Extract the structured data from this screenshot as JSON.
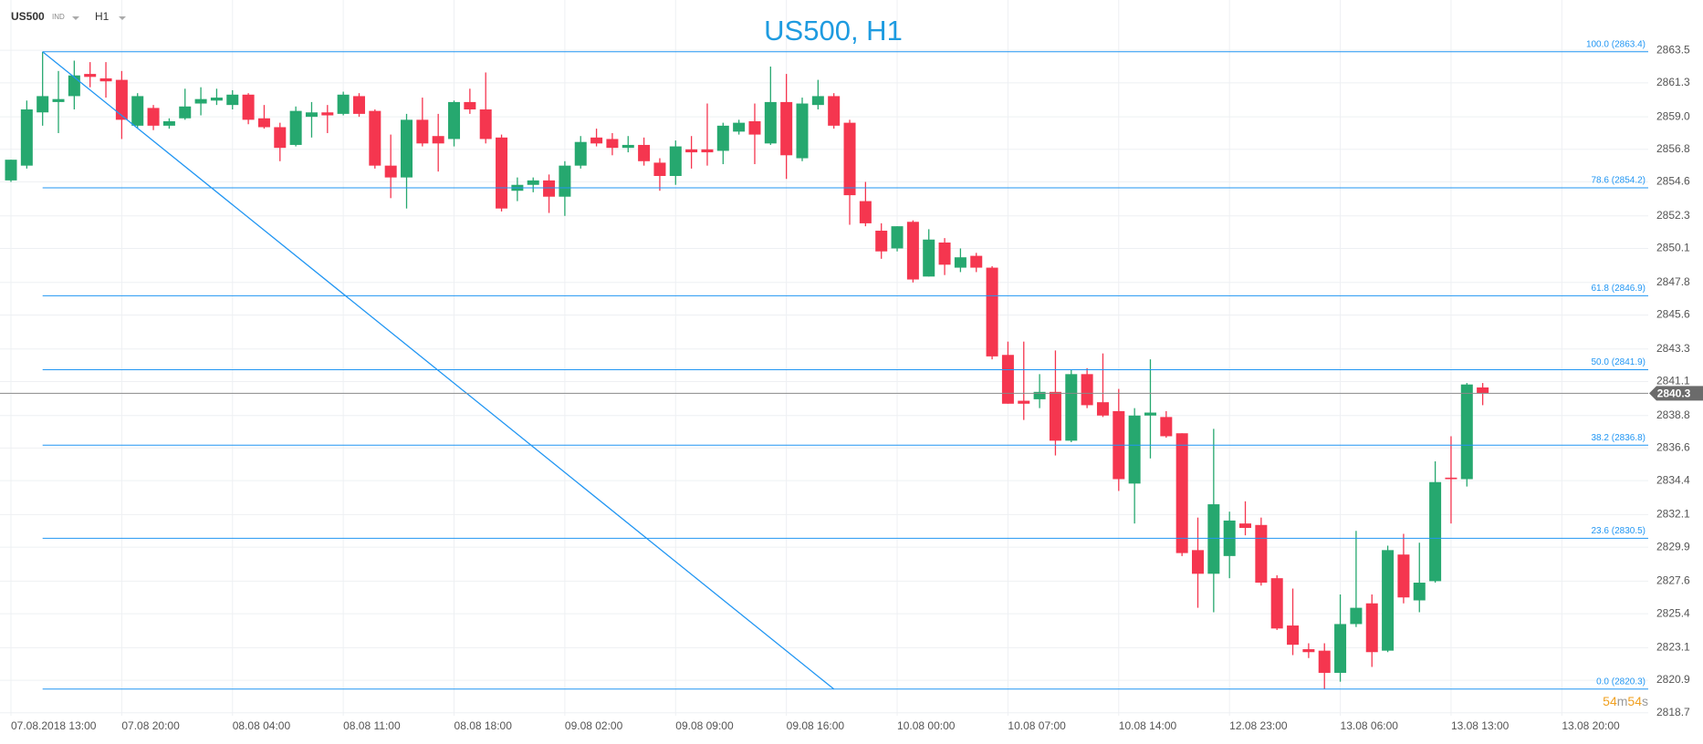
{
  "header": {
    "symbol": "US500",
    "market": "IND",
    "timeframe": "H1"
  },
  "chart_data": {
    "type": "candlestick",
    "title": "US500, H1",
    "categories": [
      "07.08.2018 13:00",
      null,
      null,
      null,
      null,
      null,
      null,
      "07.08 20:00",
      null,
      null,
      null,
      null,
      null,
      null,
      "08.08 04:00",
      null,
      null,
      null,
      null,
      null,
      null,
      "08.08 11:00",
      null,
      null,
      null,
      null,
      null,
      null,
      "08.08 18:00",
      null,
      null,
      null,
      null,
      null,
      null,
      "09.08 02:00",
      null,
      null,
      null,
      null,
      null,
      null,
      "09.08 09:00",
      null,
      null,
      null,
      null,
      null,
      null,
      "09.08 16:00",
      null,
      null,
      null,
      null,
      null,
      null,
      "10.08 00:00",
      null,
      null,
      null,
      null,
      null,
      null,
      "10.08 07:00",
      null,
      null,
      null,
      null,
      null,
      null,
      "10.08 14:00",
      null,
      null,
      null,
      null,
      null,
      null,
      "12.08 23:00",
      null,
      null,
      null,
      null,
      null,
      null,
      "13.08 06:00",
      null,
      null,
      null,
      null,
      null,
      null,
      "13.08 13:00",
      null,
      null,
      null,
      null,
      null,
      null,
      "13.08 20:00"
    ],
    "open": [
      2854.7,
      2855.7,
      2859.3,
      2860.0,
      2860.4,
      2861.9,
      2861.6,
      2861.5,
      2858.4,
      2859.6,
      2858.4,
      2858.9,
      2859.9,
      2860.1,
      2859.8,
      2860.5,
      2858.9,
      2858.3,
      2857.1,
      2859.0,
      2859.3,
      2859.2,
      2860.4,
      2859.4,
      2855.7,
      2854.9,
      2858.8,
      2857.7,
      2857.5,
      2860.0,
      2859.5,
      2857.6,
      2854.0,
      2854.4,
      2854.7,
      2853.6,
      2855.7,
      2857.6,
      2857.5,
      2856.9,
      2857.1,
      2855.9,
      2855.0,
      2856.8,
      2856.8,
      2856.7,
      2858.0,
      2858.7,
      2857.2,
      2860.0,
      2856.2,
      2859.8,
      2860.4,
      2858.6,
      2853.3,
      2851.3,
      2850.1,
      2851.9,
      2848.2,
      2850.5,
      2848.8,
      2849.6,
      2848.8,
      2842.9,
      2839.8,
      2839.9,
      2840.4,
      2837.1,
      2841.6,
      2839.7,
      2839.1,
      2834.2,
      2838.8,
      2838.7,
      2837.6,
      2829.7,
      2828.1,
      2829.3,
      2831.5,
      2831.4,
      2827.8,
      2824.6,
      2823.0,
      2822.9,
      2821.4,
      2824.7,
      2826.1,
      2822.9,
      2829.4,
      2826.3,
      2827.6,
      2834.6,
      2834.5,
      2840.7,
      null,
      null,
      null,
      null,
      null
    ],
    "high": [
      2856.1,
      2860.1,
      2863.4,
      2862.1,
      2862.8,
      2862.7,
      2862.7,
      2862.1,
      2860.6,
      2859.8,
      2858.9,
      2860.9,
      2861.0,
      2860.9,
      2860.8,
      2860.6,
      2859.8,
      2858.6,
      2859.7,
      2860.0,
      2859.8,
      2860.7,
      2860.6,
      2859.5,
      2857.8,
      2859.2,
      2860.3,
      2859.2,
      2860.1,
      2860.9,
      2862.0,
      2857.8,
      2854.9,
      2854.9,
      2855.1,
      2856.0,
      2857.7,
      2858.2,
      2857.9,
      2857.7,
      2857.6,
      2856.2,
      2857.4,
      2857.7,
      2859.9,
      2858.6,
      2858.8,
      2859.9,
      2862.4,
      2861.9,
      2860.3,
      2861.5,
      2860.6,
      2858.8,
      2854.6,
      2851.8,
      2851.6,
      2852.0,
      2851.4,
      2850.8,
      2850.1,
      2849.8,
      2848.9,
      2843.8,
      2843.8,
      2841.6,
      2843.2,
      2841.9,
      2842.0,
      2843.0,
      2840.6,
      2839.3,
      2842.6,
      2839.1,
      2837.6,
      2831.9,
      2837.9,
      2832.3,
      2833.0,
      2831.9,
      2828.0,
      2827.1,
      2823.4,
      2823.4,
      2826.7,
      2831.0,
      2826.7,
      2830.0,
      2830.8,
      2830.2,
      2835.7,
      2837.4,
      2841.0,
      2841.0,
      null,
      null,
      null,
      null,
      null
    ],
    "low": [
      2854.6,
      2855.5,
      2858.4,
      2857.9,
      2859.5,
      2861.0,
      2860.3,
      2857.5,
      2858.2,
      2858.1,
      2858.2,
      2858.8,
      2859.1,
      2859.8,
      2859.5,
      2858.5,
      2858.2,
      2856.0,
      2857.0,
      2857.6,
      2857.9,
      2859.1,
      2859.0,
      2855.5,
      2853.5,
      2852.8,
      2857.0,
      2855.3,
      2857.0,
      2859.2,
      2857.2,
      2852.6,
      2853.3,
      2853.9,
      2852.5,
      2852.3,
      2855.5,
      2857.0,
      2856.4,
      2856.6,
      2855.7,
      2854.0,
      2854.4,
      2855.5,
      2855.7,
      2855.8,
      2857.8,
      2855.8,
      2857.1,
      2854.8,
      2856.0,
      2859.5,
      2858.2,
      2851.7,
      2851.6,
      2849.4,
      2849.9,
      2847.8,
      2848.2,
      2848.3,
      2848.5,
      2848.5,
      2842.6,
      2839.6,
      2838.5,
      2839.3,
      2836.1,
      2837.0,
      2839.3,
      2838.7,
      2833.7,
      2831.5,
      2835.9,
      2837.3,
      2829.3,
      2825.8,
      2825.5,
      2827.8,
      2830.7,
      2827.3,
      2824.3,
      2822.6,
      2822.4,
      2820.3,
      2820.8,
      2824.5,
      2821.8,
      2822.8,
      2826.1,
      2825.5,
      2827.5,
      2831.5,
      2834.0,
      2839.5,
      null,
      null,
      null,
      null,
      null
    ],
    "close": [
      2856.1,
      2859.5,
      2860.4,
      2860.2,
      2861.8,
      2861.7,
      2861.4,
      2858.8,
      2860.4,
      2858.4,
      2858.7,
      2859.7,
      2860.2,
      2860.3,
      2860.5,
      2858.8,
      2858.3,
      2856.9,
      2859.4,
      2859.3,
      2859.1,
      2860.5,
      2859.2,
      2855.7,
      2854.9,
      2858.8,
      2857.2,
      2857.2,
      2860.0,
      2859.5,
      2857.5,
      2852.8,
      2854.4,
      2854.7,
      2853.6,
      2855.7,
      2857.3,
      2857.2,
      2856.9,
      2857.1,
      2856.0,
      2855.0,
      2857.0,
      2856.6,
      2856.6,
      2858.4,
      2858.6,
      2857.8,
      2860.0,
      2856.4,
      2859.9,
      2860.4,
      2858.4,
      2853.7,
      2851.8,
      2849.9,
      2851.6,
      2848.0,
      2850.7,
      2849.0,
      2849.5,
      2848.8,
      2842.8,
      2839.6,
      2839.6,
      2840.4,
      2837.1,
      2841.6,
      2839.5,
      2838.8,
      2834.5,
      2838.8,
      2839.0,
      2837.4,
      2829.5,
      2828.1,
      2832.8,
      2831.7,
      2831.2,
      2827.5,
      2824.4,
      2823.3,
      2822.8,
      2821.4,
      2824.7,
      2825.8,
      2822.8,
      2829.7,
      2826.5,
      2827.5,
      2834.3,
      2834.5,
      2840.9,
      2840.3,
      null,
      null,
      null,
      null,
      null
    ],
    "up_color": "#26a86f",
    "down_color": "#f5364f",
    "ylim": [
      2818.5,
      2866.9
    ],
    "yticks": [
      2818.7,
      2820.9,
      2823.1,
      2825.4,
      2827.6,
      2829.9,
      2832.1,
      2834.4,
      2836.6,
      2838.8,
      2841.1,
      2843.3,
      2845.6,
      2847.8,
      {
        "value": 2850.1,
        "label": "2850.1"
      },
      2852.3,
      2854.6,
      2856.8,
      {
        "value": 2859,
        "label": "2859.0"
      },
      2861.3,
      2863.5
    ],
    "grid": true,
    "fib_levels": [
      {
        "value": 2863.4,
        "label": "100.0 (2863.4)"
      },
      {
        "value": 2854.2,
        "label": "78.6 (2854.2)"
      },
      {
        "value": 2846.9,
        "label": "61.8 (2846.9)"
      },
      {
        "value": 2841.9,
        "label": "50.0 (2841.9)"
      },
      {
        "value": 2836.8,
        "label": "38.2 (2836.8)"
      },
      {
        "value": 2830.5,
        "label": "23.6 (2830.5)"
      },
      {
        "value": 2820.3,
        "label": "0.0 (2820.3)"
      }
    ],
    "fib_color": "#2196f3",
    "current_price": 2840.3,
    "countdown": [
      "54",
      "m",
      "54",
      "s"
    ]
  }
}
